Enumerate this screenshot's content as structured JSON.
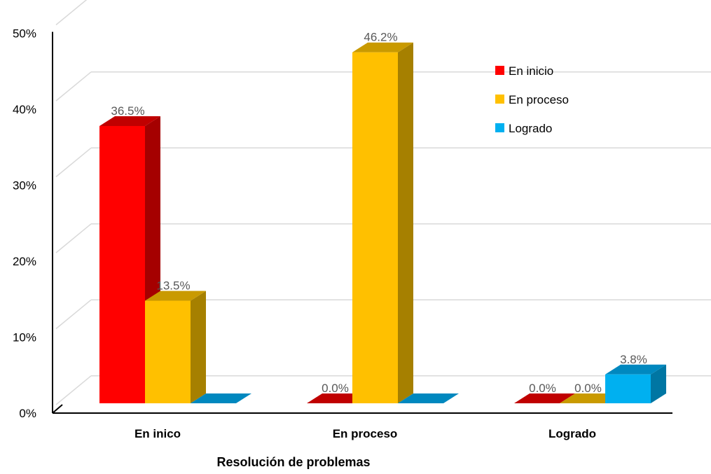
{
  "chart_data": {
    "type": "bar",
    "style": "3d-clustered-column",
    "title": "",
    "xlabel": "Resolución de problemas",
    "ylabel": "",
    "ylim": [
      0,
      50
    ],
    "y_ticks": [
      "0%",
      "10%",
      "20%",
      "30%",
      "40%",
      "50%"
    ],
    "y_tick_values": [
      0,
      10,
      20,
      30,
      40,
      50
    ],
    "categories": [
      "En inico",
      "En proceso",
      "Logrado"
    ],
    "series": [
      {
        "name": "En inicio",
        "values": [
          36.5,
          0.0,
          0.0
        ],
        "labels": [
          "36.5%",
          "0.0%",
          "0.0%"
        ],
        "color": "#ff0000",
        "side_color": "#a50000",
        "top_color": "#c00000"
      },
      {
        "name": "En proceso",
        "values": [
          13.5,
          46.2,
          0.0
        ],
        "labels": [
          "13.5%",
          "46.2%",
          "0.0%"
        ],
        "color": "#ffc000",
        "side_color": "#a68000",
        "top_color": "#c99a00"
      },
      {
        "name": "Logrado",
        "values": [
          0.0,
          0.0,
          3.8
        ],
        "labels": [
          "",
          "",
          "3.8%"
        ],
        "color": "#00b0f0",
        "side_color": "#0076a3",
        "top_color": "#0088bf"
      }
    ],
    "grid": true,
    "legend_position": "top-right"
  }
}
